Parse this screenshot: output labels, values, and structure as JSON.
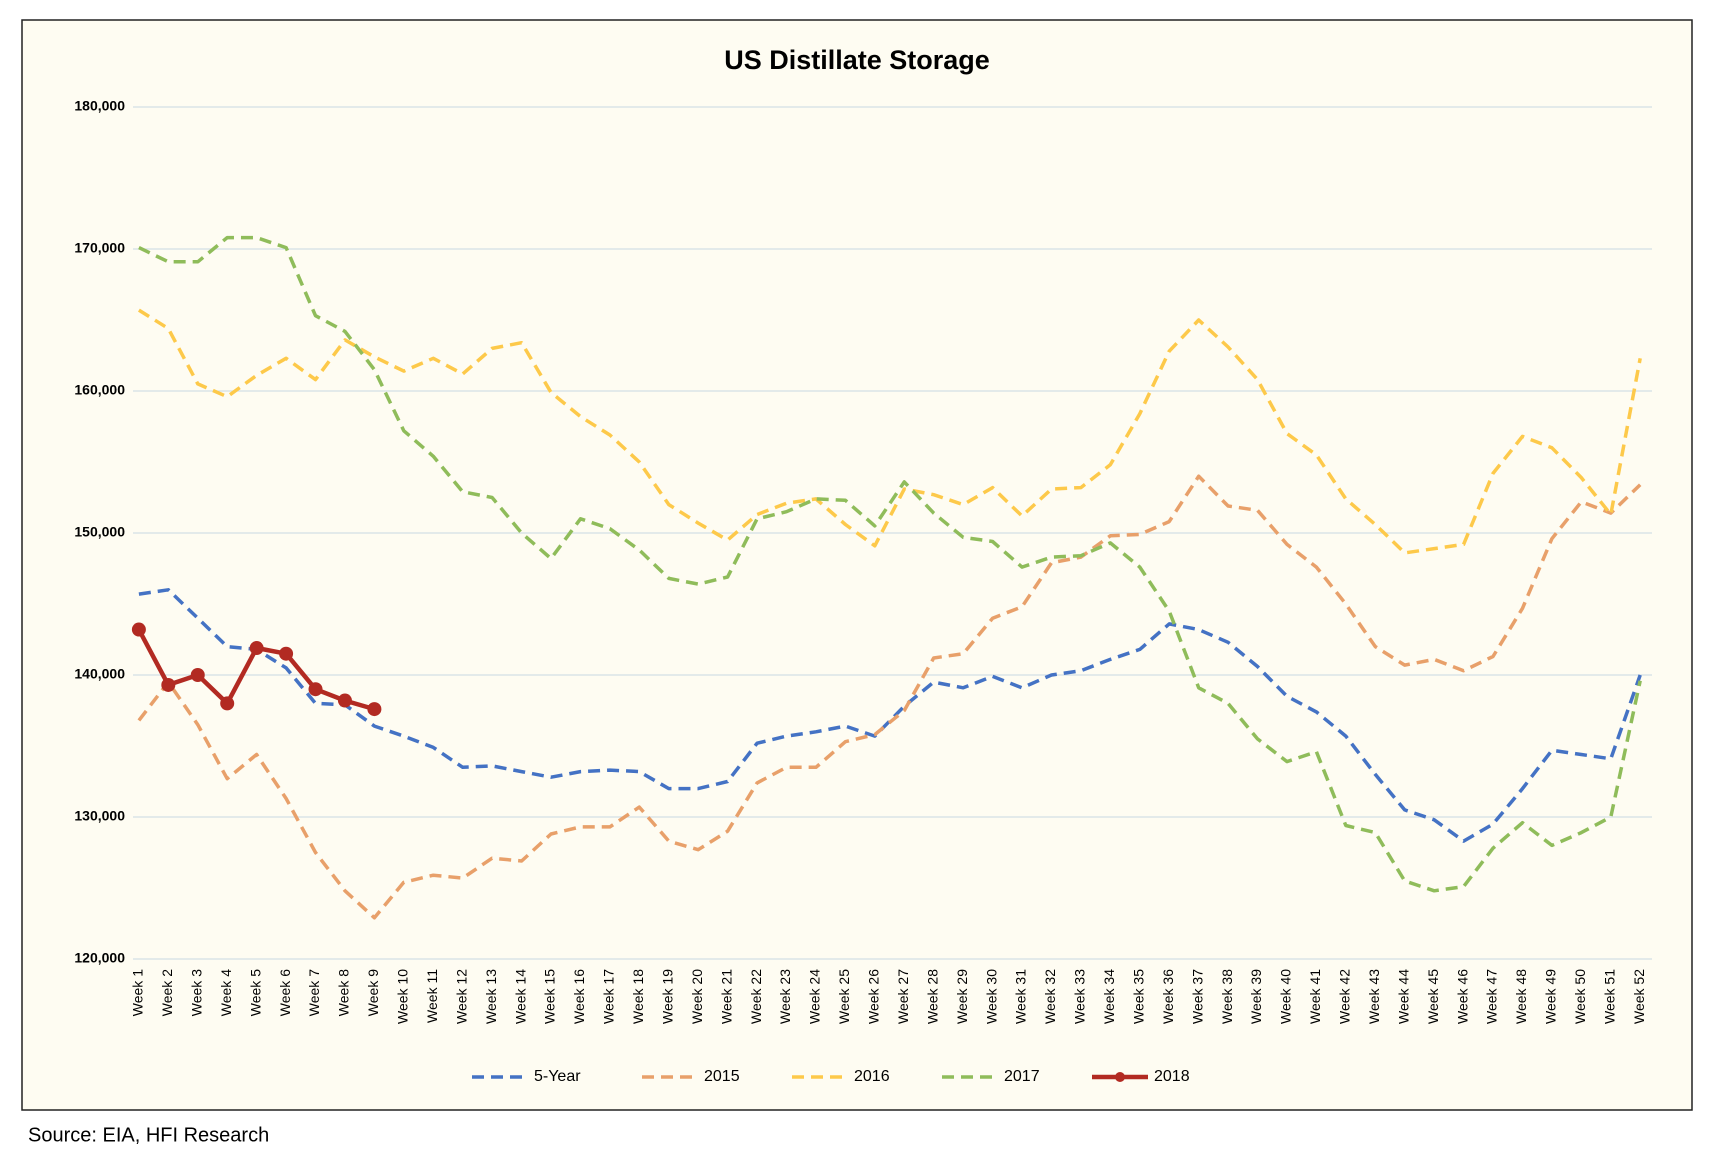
{
  "chart_data": {
    "type": "line",
    "title": "US Distillate Storage",
    "source": "Source: EIA, HFI Research",
    "categories": [
      "Week 1",
      "Week 2",
      "Week 3",
      "Week 4",
      "Week 5",
      "Week 6",
      "Week 7",
      "Week 8",
      "Week 9",
      "Week 10",
      "Week 11",
      "Week 12",
      "Week 13",
      "Week 14",
      "Week 15",
      "Week 16",
      "Week 17",
      "Week 18",
      "Week 19",
      "Week 20",
      "Week 21",
      "Week 22",
      "Week 23",
      "Week 24",
      "Week 25",
      "Week 26",
      "Week 27",
      "Week 28",
      "Week 29",
      "Week 30",
      "Week 31",
      "Week 32",
      "Week 33",
      "Week 34",
      "Week 35",
      "Week 36",
      "Week 37",
      "Week 38",
      "Week 39",
      "Week 40",
      "Week 41",
      "Week 42",
      "Week 43",
      "Week 44",
      "Week 45",
      "Week 46",
      "Week 47",
      "Week 48",
      "Week 49",
      "Week 50",
      "Week 51",
      "Week 52"
    ],
    "ylim": [
      120000,
      180000
    ],
    "yticks": [
      {
        "value": 120000,
        "label": "120,000"
      },
      {
        "value": 130000,
        "label": "130,000"
      },
      {
        "value": 140000,
        "label": "140,000"
      },
      {
        "value": 150000,
        "label": "150,000"
      },
      {
        "value": 160000,
        "label": "160,000"
      },
      {
        "value": 170000,
        "label": "170,000"
      },
      {
        "value": 180000,
        "label": "180,000"
      }
    ],
    "grid": true,
    "legend": "bottom",
    "series": [
      {
        "name": "5-Year",
        "color": "#4472c4",
        "dashed": true,
        "values": [
          145700,
          146000,
          144000,
          142000,
          141800,
          140500,
          138000,
          137900,
          136400,
          135700,
          134900,
          133500,
          133600,
          133200,
          132800,
          133200,
          133300,
          133200,
          132000,
          132000,
          132500,
          135200,
          135700,
          136000,
          136400,
          135700,
          137800,
          139500,
          139100,
          139900,
          139100,
          140000,
          140300,
          141100,
          141800,
          143600,
          143200,
          142300,
          140600,
          138500,
          137400,
          135700,
          133000,
          130500,
          129800,
          128300,
          129500,
          132000,
          134700,
          134400,
          134100,
          140000
        ]
      },
      {
        "name": "2015",
        "color": "#e8a06a",
        "dashed": true,
        "values": [
          136800,
          139500,
          136500,
          132700,
          134400,
          131300,
          127500,
          124800,
          122900,
          125400,
          125900,
          125700,
          127100,
          126900,
          128800,
          129300,
          129300,
          130700,
          128300,
          127700,
          129000,
          132400,
          133500,
          133500,
          135300,
          135800,
          137500,
          141200,
          141500,
          144000,
          144800,
          147900,
          148300,
          149800,
          149900,
          150800,
          154000,
          151900,
          151600,
          149200,
          147600,
          145000,
          142000,
          140700,
          141100,
          140300,
          141300,
          144700,
          149600,
          152200,
          151400,
          153400
        ]
      },
      {
        "name": "2016",
        "color": "#fdc94a",
        "dashed": true,
        "values": [
          165700,
          164400,
          160500,
          159600,
          161100,
          162300,
          160800,
          163600,
          162400,
          161400,
          162300,
          161200,
          163000,
          163400,
          159900,
          158200,
          156900,
          155000,
          152000,
          150700,
          149500,
          151300,
          152100,
          152400,
          150600,
          149100,
          153100,
          152700,
          152000,
          153200,
          151200,
          153100,
          153200,
          154800,
          158400,
          162800,
          165000,
          163100,
          160800,
          157000,
          155500,
          152400,
          150600,
          148600,
          148900,
          149200,
          154200,
          156800,
          156000,
          153900,
          151300,
          162300
        ]
      },
      {
        "name": "2017",
        "color": "#8fbc5a",
        "dashed": true,
        "values": [
          170100,
          169100,
          169100,
          170800,
          170800,
          170100,
          165300,
          164200,
          161500,
          157200,
          155400,
          152900,
          152500,
          150000,
          148200,
          151000,
          150300,
          148800,
          146800,
          146400,
          146900,
          151000,
          151500,
          152400,
          152300,
          150500,
          153600,
          151400,
          149700,
          149400,
          147600,
          148300,
          148400,
          149300,
          147600,
          144500,
          139100,
          138000,
          135500,
          133900,
          134600,
          129400,
          128900,
          125500,
          124800,
          125100,
          127800,
          129600,
          128000,
          128900,
          130000,
          139600
        ]
      },
      {
        "name": "2018",
        "color": "#b22a22",
        "dashed": false,
        "marker": true,
        "values": [
          143200,
          139300,
          140000,
          138000,
          141900,
          141500,
          139000,
          138200,
          137600,
          null,
          null,
          null,
          null,
          null,
          null,
          null,
          null,
          null,
          null,
          null,
          null,
          null,
          null,
          null,
          null,
          null,
          null,
          null,
          null,
          null,
          null,
          null,
          null,
          null,
          null,
          null,
          null,
          null,
          null,
          null,
          null,
          null,
          null,
          null,
          null,
          null,
          null,
          null,
          null,
          null,
          null,
          null
        ]
      }
    ]
  }
}
